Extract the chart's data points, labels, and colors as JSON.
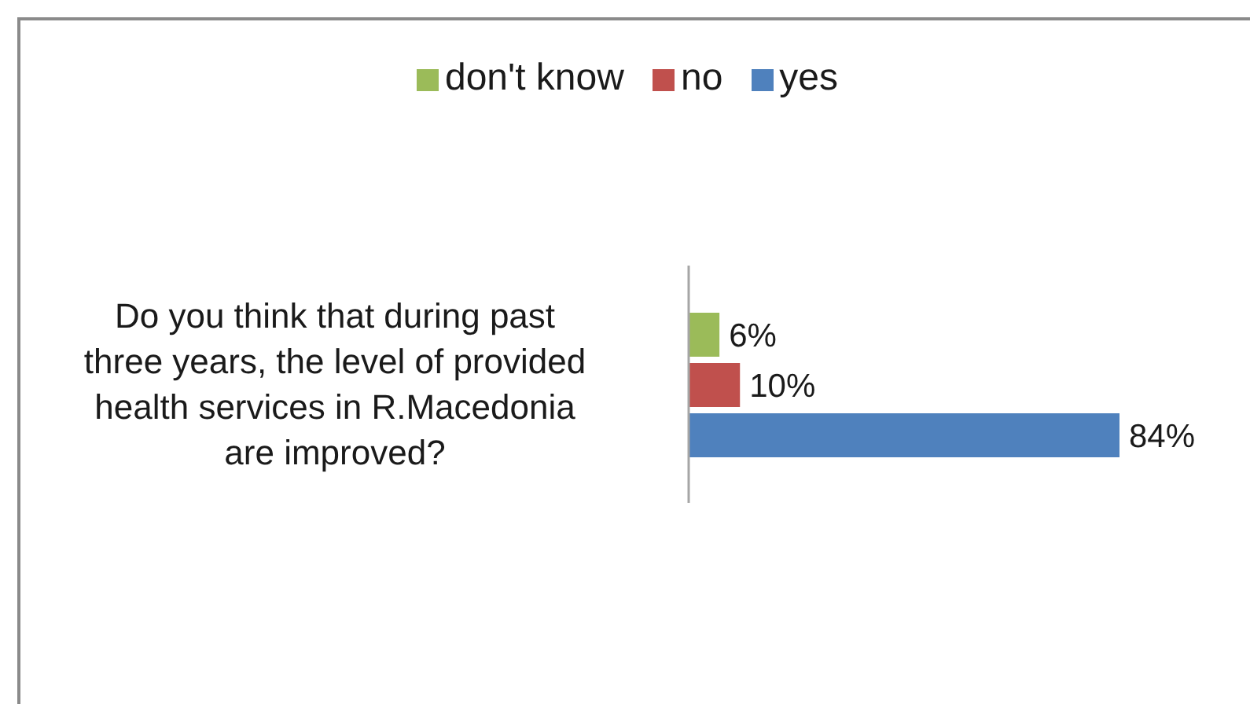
{
  "chart_data": {
    "type": "bar",
    "orientation": "horizontal",
    "legend": "top",
    "categories": [
      "Do you think that during past three years, the level of provided health services in R.Macedonia are improved?"
    ],
    "series": [
      {
        "name": "don't know",
        "color": "#9bbb59",
        "values": [
          6
        ],
        "value_labels": [
          "6%"
        ]
      },
      {
        "name": "no",
        "color": "#c0504d",
        "values": [
          10
        ],
        "value_labels": [
          "10%"
        ]
      },
      {
        "name": "yes",
        "color": "#4f81bd",
        "values": [
          84
        ],
        "value_labels": [
          "84%"
        ]
      }
    ]
  }
}
